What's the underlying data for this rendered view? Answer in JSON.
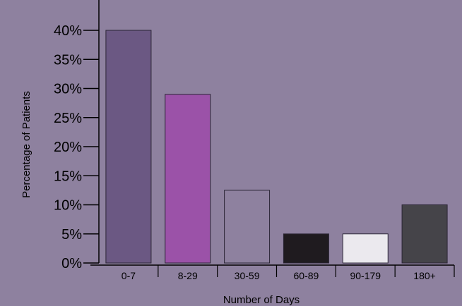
{
  "chart_data": {
    "type": "bar",
    "title": "",
    "xlabel": "Number of Days",
    "ylabel": "Percentage of Patients",
    "categories": [
      "0-7",
      "8-29",
      "30-59",
      "60-89",
      "90-179",
      "180+"
    ],
    "values": [
      40,
      29,
      12.5,
      5,
      5,
      10
    ],
    "ylim": [
      0,
      40
    ],
    "y_ticks": [
      0,
      5,
      10,
      15,
      20,
      25,
      30,
      35,
      40
    ],
    "y_tick_labels": [
      "0%",
      "5%",
      "10%",
      "15%",
      "20%",
      "25%",
      "30%",
      "35%",
      "40%"
    ],
    "bar_colors": [
      "#6b5883",
      "#9b52a8",
      "#8e819f",
      "#1f1b1f",
      "#ebe9ee",
      "#454449"
    ],
    "grid": false,
    "legend": "none"
  },
  "colors": {
    "background": "#8e819f",
    "axis": "#000000"
  }
}
